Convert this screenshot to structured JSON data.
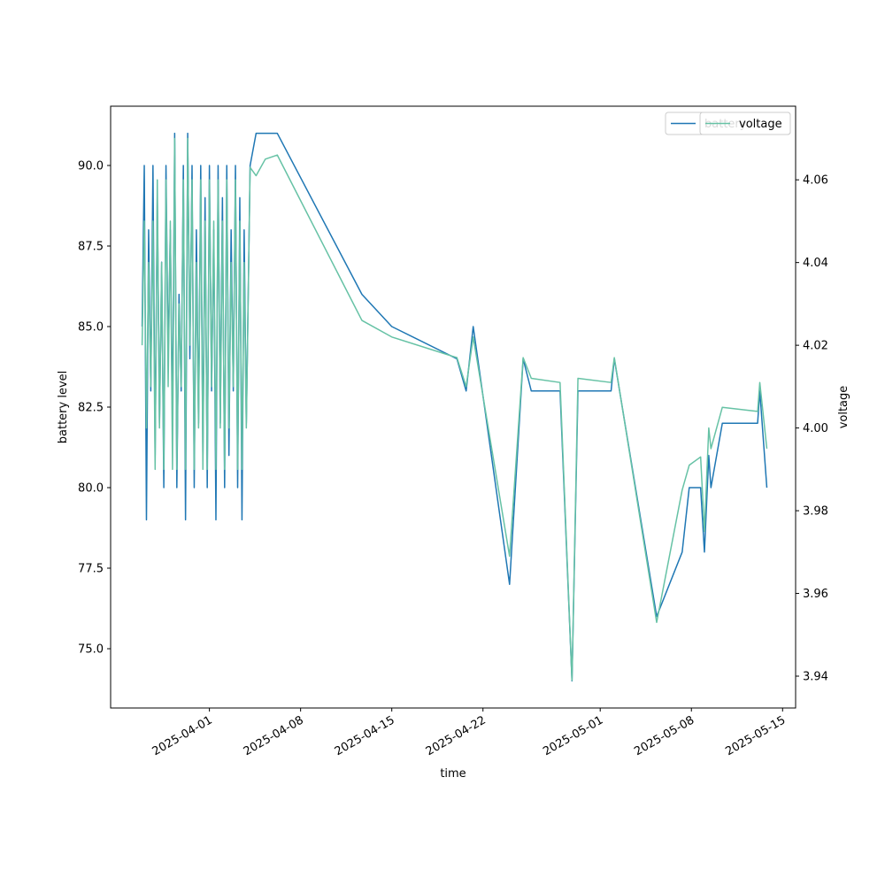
{
  "chart_data": {
    "type": "line",
    "xlabel": "time",
    "ylabel": "battery level",
    "y2label": "voltage",
    "legend": "upper right",
    "xlim": [
      "2025-03-24 10:00",
      "2025-05-16 00:00"
    ],
    "xticks": [
      "2025-04-01",
      "2025-04-08",
      "2025-04-15",
      "2025-04-22",
      "2025-05-01",
      "2025-05-08",
      "2025-05-15"
    ],
    "ylim": [
      73.16,
      91.84
    ],
    "yticks": [
      {
        "value": 75,
        "label": "75.0"
      },
      {
        "value": 77.5,
        "label": "77.5"
      },
      {
        "value": 80,
        "label": "80.0"
      },
      {
        "value": 82.5,
        "label": "82.5"
      },
      {
        "value": 85,
        "label": "85.0"
      },
      {
        "value": 87.5,
        "label": "87.5"
      },
      {
        "value": 90,
        "label": "90.0"
      }
    ],
    "y2lim": [
      3.9323,
      4.0778
    ],
    "y2ticks": [
      3.94,
      3.96,
      3.98,
      {
        "value": 4,
        "label": "4.00"
      },
      4.02,
      4.04,
      4.06
    ],
    "x": [
      "2025-03-26 20:00",
      "2025-03-27 00:00",
      "2025-03-27 04:00",
      "2025-03-27 08:00",
      "2025-03-27 12:00",
      "2025-03-27 16:00",
      "2025-03-27 20:00",
      "2025-03-28 00:00",
      "2025-03-28 04:00",
      "2025-03-28 08:00",
      "2025-03-28 12:00",
      "2025-03-28 16:00",
      "2025-03-28 20:00",
      "2025-03-29 00:00",
      "2025-03-29 04:00",
      "2025-03-29 08:00",
      "2025-03-29 12:00",
      "2025-03-29 16:00",
      "2025-03-29 20:00",
      "2025-03-30 00:00",
      "2025-03-30 04:00",
      "2025-03-30 08:00",
      "2025-03-30 12:00",
      "2025-03-30 16:00",
      "2025-03-30 20:00",
      "2025-03-31 00:00",
      "2025-03-31 04:00",
      "2025-03-31 08:00",
      "2025-03-31 12:00",
      "2025-03-31 16:00",
      "2025-03-31 20:00",
      "2025-04-01 00:00",
      "2025-04-01 04:00",
      "2025-04-01 08:00",
      "2025-04-01 12:00",
      "2025-04-01 16:00",
      "2025-04-01 20:00",
      "2025-04-02 00:00",
      "2025-04-02 04:00",
      "2025-04-02 08:00",
      "2025-04-02 12:00",
      "2025-04-02 16:00",
      "2025-04-02 20:00",
      "2025-04-03 00:00",
      "2025-04-03 04:00",
      "2025-04-03 08:00",
      "2025-04-03 12:00",
      "2025-04-03 16:00",
      "2025-04-03 20:00",
      "2025-04-04 03:00",
      "2025-04-04 14:00",
      "2025-04-05 07:00",
      "2025-04-06 05:00",
      "2025-04-12 17:00",
      "2025-04-15 00:00",
      "2025-04-20 00:00",
      "2025-04-20 17:00",
      "2025-04-21 06:00",
      "2025-04-24 01:00",
      "2025-04-25 02:00",
      "2025-04-25 17:00",
      "2025-04-27 22:00",
      "2025-04-28 20:00",
      "2025-04-29 07:00",
      "2025-05-01 20:00",
      "2025-05-02 02:00",
      "2025-05-05 08:00",
      "2025-05-07 07:00",
      "2025-05-07 20:00",
      "2025-05-08 17:00",
      "2025-05-09 00:00",
      "2025-05-09 08:00",
      "2025-05-09 12:00",
      "2025-05-10 09:00",
      "2025-05-13 02:00",
      "2025-05-13 06:00",
      "2025-05-13 19:00"
    ],
    "series": [
      {
        "name": "battery",
        "color": "#1f77b4",
        "axis": "y",
        "values": [
          85,
          90,
          79,
          88,
          83,
          90,
          81,
          89,
          82,
          87,
          80,
          90,
          84,
          88,
          82,
          91,
          80,
          86,
          83,
          90,
          79,
          91,
          84,
          90,
          80,
          88,
          82,
          90,
          81,
          89,
          80,
          90,
          83,
          88,
          79,
          90,
          82,
          89,
          80,
          90,
          81,
          88,
          83,
          90,
          80,
          89,
          79,
          88,
          82,
          90,
          91,
          91,
          91,
          86,
          85,
          84,
          83,
          85,
          77,
          84,
          83,
          83,
          74,
          83,
          83,
          84,
          76,
          78,
          80,
          80,
          78,
          81,
          80,
          82,
          82,
          83,
          80
        ]
      },
      {
        "name": "voltage",
        "color": "#66c2a5",
        "axis": "y2",
        "values": [
          4.02,
          4.05,
          4.0,
          4.04,
          4.01,
          4.05,
          3.99,
          4.06,
          4.0,
          4.04,
          3.99,
          4.06,
          4.01,
          4.05,
          3.99,
          4.07,
          3.99,
          4.03,
          4.01,
          4.06,
          3.99,
          4.07,
          4.02,
          4.06,
          3.99,
          4.04,
          4.0,
          4.06,
          3.99,
          4.05,
          3.99,
          4.06,
          4.01,
          4.05,
          3.99,
          4.06,
          4.0,
          4.05,
          3.99,
          4.06,
          4.0,
          4.04,
          4.01,
          4.06,
          3.99,
          4.05,
          3.99,
          4.04,
          4.0,
          4.063,
          4.061,
          4.065,
          4.066,
          4.026,
          4.022,
          4.017,
          4.01,
          4.022,
          3.969,
          4.017,
          4.012,
          4.011,
          3.939,
          4.012,
          4.011,
          4.017,
          3.953,
          3.985,
          3.991,
          3.993,
          3.975,
          4.0,
          3.995,
          4.005,
          4.004,
          4.011,
          3.995
        ]
      }
    ]
  }
}
